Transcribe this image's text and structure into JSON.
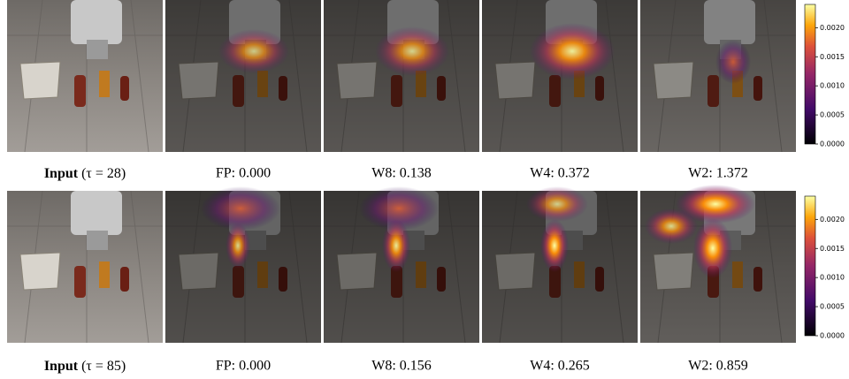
{
  "rows": [
    {
      "input_caption": {
        "label": "Input",
        "detail": "(τ = 28)"
      },
      "captions": [
        "FP: 0.000",
        "W8: 0.138",
        "W4: 0.372",
        "W2: 1.372"
      ],
      "colorbar": {
        "range": [
          0,
          0.0024
        ],
        "ticks": [
          {
            "value": 0,
            "label": "0.0000"
          },
          {
            "value": 0.0005,
            "label": "0.0005"
          },
          {
            "value": 0.001,
            "label": "0.0010"
          },
          {
            "value": 0.0015,
            "label": "0.0015"
          },
          {
            "value": 0.002,
            "label": "0.0020"
          }
        ]
      }
    },
    {
      "input_caption": {
        "label": "Input",
        "detail": "(τ = 85)"
      },
      "captions": [
        "FP: 0.000",
        "W8: 0.156",
        "W4: 0.265",
        "W2: 0.859"
      ],
      "colorbar": {
        "range": [
          0,
          0.0024
        ],
        "ticks": [
          {
            "value": 0,
            "label": "0.0000"
          },
          {
            "value": 0.0005,
            "label": "0.0005"
          },
          {
            "value": 0.001,
            "label": "0.0010"
          },
          {
            "value": 0.0015,
            "label": "0.0015"
          },
          {
            "value": 0.002,
            "label": "0.0020"
          }
        ]
      }
    }
  ]
}
